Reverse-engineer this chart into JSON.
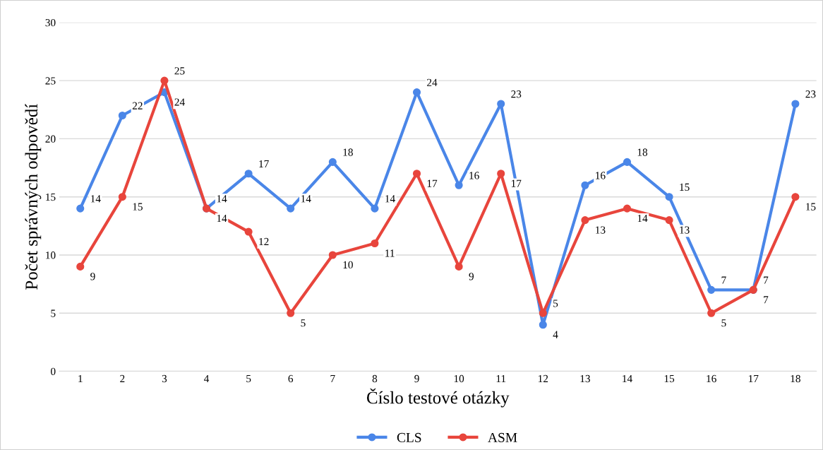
{
  "chart_data": {
    "type": "line",
    "xlabel": "Číslo testové otázky",
    "ylabel": "Počet správných odpovědí",
    "categories": [
      "1",
      "2",
      "3",
      "4",
      "5",
      "6",
      "7",
      "8",
      "9",
      "10",
      "11",
      "12",
      "13",
      "14",
      "15",
      "16",
      "17",
      "18"
    ],
    "series": [
      {
        "name": "CLS",
        "color": "#4a86e8",
        "values": [
          14,
          22,
          24,
          14,
          17,
          14,
          18,
          14,
          24,
          16,
          23,
          4,
          16,
          18,
          15,
          7,
          7,
          23
        ]
      },
      {
        "name": "ASM",
        "color": "#e8453c",
        "values": [
          9,
          15,
          25,
          14,
          12,
          5,
          10,
          11,
          17,
          9,
          17,
          5,
          13,
          14,
          13,
          5,
          7,
          15
        ]
      }
    ],
    "ylim": [
      0,
      30
    ],
    "yticks": [
      0,
      5,
      10,
      15,
      20,
      25,
      30
    ],
    "grid": "y",
    "legend": "bottom",
    "marker": "circle",
    "line_style": "solid",
    "data_labels": true
  }
}
